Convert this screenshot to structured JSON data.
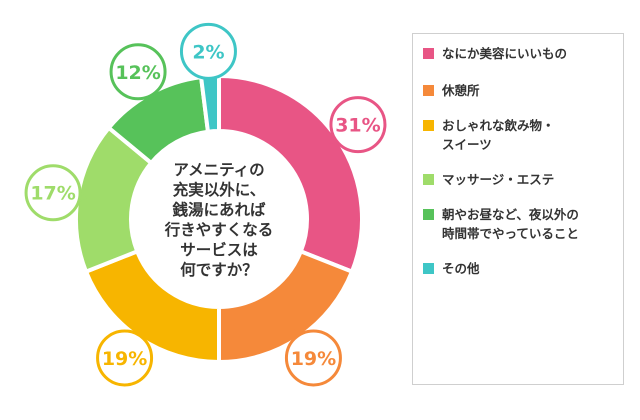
{
  "chart_data": {
    "type": "donut",
    "title": "アメニティの\n充実以外に、\n銭湯にあれば\n行きやすくなる\nサービスは\n何ですか？",
    "unit": "%",
    "series": [
      {
        "name": "なにか美容にいいもの",
        "value": 31,
        "label": "31%",
        "color": "#e85585"
      },
      {
        "name": "休憩所",
        "value": 19,
        "label": "19%",
        "color": "#f5893a"
      },
      {
        "name": "おしゃれな飲み物・\nスイーツ",
        "value": 19,
        "label": "19%",
        "color": "#f7b500"
      },
      {
        "name": "マッサージ・エステ",
        "value": 17,
        "label": "17%",
        "color": "#9fdc6a"
      },
      {
        "name": "朝やお昼など、夜以外の\n時間帯でやっていること",
        "value": 12,
        "label": "12%",
        "color": "#57c25a"
      },
      {
        "name": "その他",
        "value": 2,
        "label": "2%",
        "color": "#3ec6c6"
      }
    ]
  }
}
